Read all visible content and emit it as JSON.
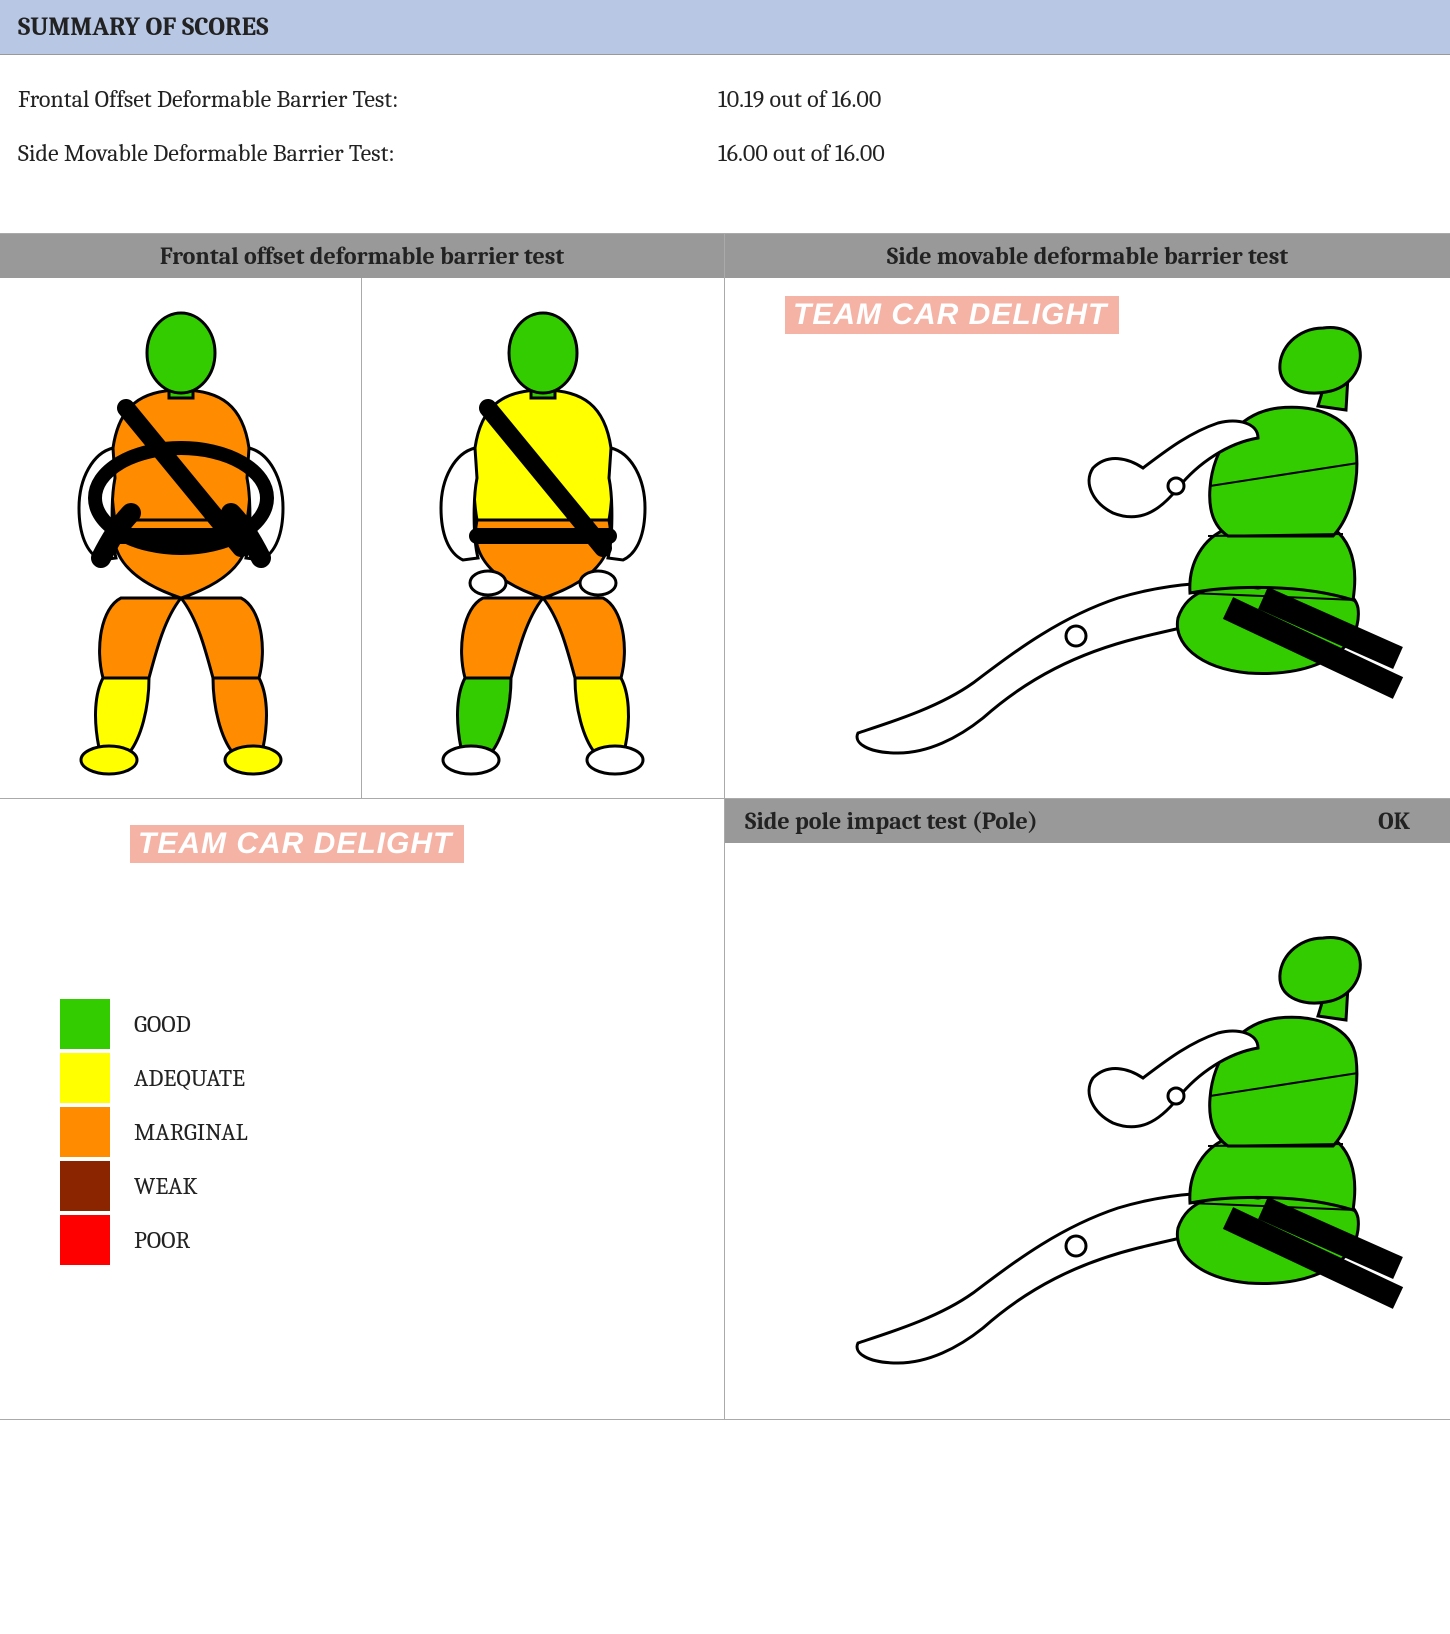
{
  "header": {
    "title": "SUMMARY OF SCORES"
  },
  "scores": [
    {
      "label": "Frontal Offset Deformable Barrier Test:",
      "value": "10.19 out of 16.00"
    },
    {
      "label": "Side Movable Deformable Barrier Test:",
      "value": "16.00 out of 16.00"
    }
  ],
  "panels": {
    "frontal": {
      "title": "Frontal offset deformable barrier test"
    },
    "side": {
      "title": "Side movable deformable barrier test"
    },
    "pole": {
      "title": "Side pole impact test (Pole)",
      "status": "OK"
    }
  },
  "colors": {
    "good": "#33cc00",
    "adequate": "#ffff00",
    "marginal": "#ff8c00",
    "weak": "#8b2500",
    "poor": "#ff0000",
    "outline": "#000000",
    "neutral": "#ffffff",
    "header_bar": "#b7c7e4",
    "cell_header": "#999999",
    "watermark_bg": "#f5b3a5",
    "watermark_text": "#ffffff"
  },
  "watermark": {
    "text": "TEAM CAR DELIGHT"
  },
  "legend": [
    {
      "label": "GOOD",
      "color_key": "good"
    },
    {
      "label": "ADEQUATE",
      "color_key": "adequate"
    },
    {
      "label": "MARGINAL",
      "color_key": "marginal"
    },
    {
      "label": "WEAK",
      "color_key": "weak"
    },
    {
      "label": "POOR",
      "color_key": "poor"
    }
  ],
  "dummies": {
    "frontal_driver": {
      "head": "good",
      "chest": "marginal",
      "pelvis": "marginal",
      "upper_leg_l": "marginal",
      "upper_leg_r": "marginal",
      "lower_leg_l": "adequate",
      "lower_leg_r": "marginal",
      "foot_l": "adequate",
      "foot_r": "adequate",
      "has_wheel": true
    },
    "frontal_passenger": {
      "head": "good",
      "chest": "adequate",
      "pelvis": "marginal",
      "upper_leg_l": "marginal",
      "upper_leg_r": "marginal",
      "lower_leg_l": "good",
      "lower_leg_r": "adequate",
      "foot_l": "neutral",
      "foot_r": "neutral",
      "has_wheel": false
    },
    "side": {
      "head": "good",
      "chest": "good",
      "abdomen": "good",
      "pelvis": "good"
    },
    "pole": {
      "head": "good",
      "chest": "good",
      "abdomen": "good",
      "pelvis": "good"
    }
  }
}
